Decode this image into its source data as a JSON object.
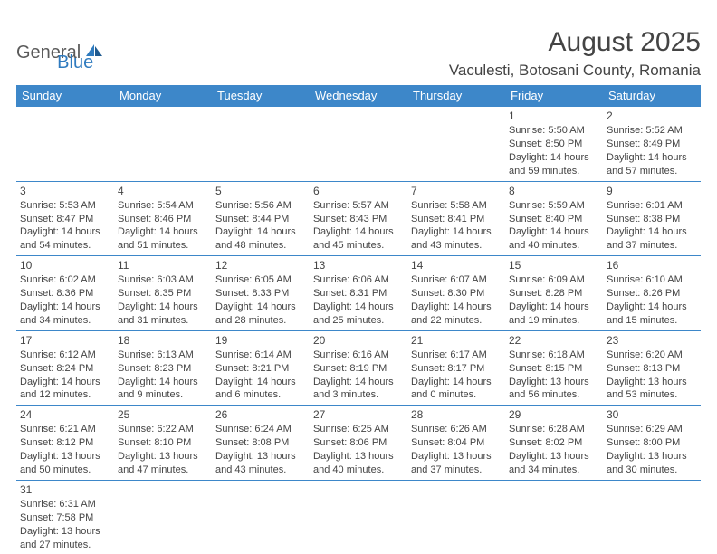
{
  "logo": {
    "text1": "General",
    "text2": "Blue"
  },
  "title": "August 2025",
  "location": "Vaculesti, Botosani County, Romania",
  "colors": {
    "header_bg": "#3d87c9",
    "header_text": "#ffffff",
    "border": "#3d87c9",
    "body_text": "#444444",
    "logo_gray": "#5a5a5a",
    "logo_blue": "#2f7bbf"
  },
  "weekdays": [
    "Sunday",
    "Monday",
    "Tuesday",
    "Wednesday",
    "Thursday",
    "Friday",
    "Saturday"
  ],
  "weeks": [
    [
      null,
      null,
      null,
      null,
      null,
      {
        "d": "1",
        "sr": "Sunrise: 5:50 AM",
        "ss": "Sunset: 8:50 PM",
        "dl1": "Daylight: 14 hours",
        "dl2": "and 59 minutes."
      },
      {
        "d": "2",
        "sr": "Sunrise: 5:52 AM",
        "ss": "Sunset: 8:49 PM",
        "dl1": "Daylight: 14 hours",
        "dl2": "and 57 minutes."
      }
    ],
    [
      {
        "d": "3",
        "sr": "Sunrise: 5:53 AM",
        "ss": "Sunset: 8:47 PM",
        "dl1": "Daylight: 14 hours",
        "dl2": "and 54 minutes."
      },
      {
        "d": "4",
        "sr": "Sunrise: 5:54 AM",
        "ss": "Sunset: 8:46 PM",
        "dl1": "Daylight: 14 hours",
        "dl2": "and 51 minutes."
      },
      {
        "d": "5",
        "sr": "Sunrise: 5:56 AM",
        "ss": "Sunset: 8:44 PM",
        "dl1": "Daylight: 14 hours",
        "dl2": "and 48 minutes."
      },
      {
        "d": "6",
        "sr": "Sunrise: 5:57 AM",
        "ss": "Sunset: 8:43 PM",
        "dl1": "Daylight: 14 hours",
        "dl2": "and 45 minutes."
      },
      {
        "d": "7",
        "sr": "Sunrise: 5:58 AM",
        "ss": "Sunset: 8:41 PM",
        "dl1": "Daylight: 14 hours",
        "dl2": "and 43 minutes."
      },
      {
        "d": "8",
        "sr": "Sunrise: 5:59 AM",
        "ss": "Sunset: 8:40 PM",
        "dl1": "Daylight: 14 hours",
        "dl2": "and 40 minutes."
      },
      {
        "d": "9",
        "sr": "Sunrise: 6:01 AM",
        "ss": "Sunset: 8:38 PM",
        "dl1": "Daylight: 14 hours",
        "dl2": "and 37 minutes."
      }
    ],
    [
      {
        "d": "10",
        "sr": "Sunrise: 6:02 AM",
        "ss": "Sunset: 8:36 PM",
        "dl1": "Daylight: 14 hours",
        "dl2": "and 34 minutes."
      },
      {
        "d": "11",
        "sr": "Sunrise: 6:03 AM",
        "ss": "Sunset: 8:35 PM",
        "dl1": "Daylight: 14 hours",
        "dl2": "and 31 minutes."
      },
      {
        "d": "12",
        "sr": "Sunrise: 6:05 AM",
        "ss": "Sunset: 8:33 PM",
        "dl1": "Daylight: 14 hours",
        "dl2": "and 28 minutes."
      },
      {
        "d": "13",
        "sr": "Sunrise: 6:06 AM",
        "ss": "Sunset: 8:31 PM",
        "dl1": "Daylight: 14 hours",
        "dl2": "and 25 minutes."
      },
      {
        "d": "14",
        "sr": "Sunrise: 6:07 AM",
        "ss": "Sunset: 8:30 PM",
        "dl1": "Daylight: 14 hours",
        "dl2": "and 22 minutes."
      },
      {
        "d": "15",
        "sr": "Sunrise: 6:09 AM",
        "ss": "Sunset: 8:28 PM",
        "dl1": "Daylight: 14 hours",
        "dl2": "and 19 minutes."
      },
      {
        "d": "16",
        "sr": "Sunrise: 6:10 AM",
        "ss": "Sunset: 8:26 PM",
        "dl1": "Daylight: 14 hours",
        "dl2": "and 15 minutes."
      }
    ],
    [
      {
        "d": "17",
        "sr": "Sunrise: 6:12 AM",
        "ss": "Sunset: 8:24 PM",
        "dl1": "Daylight: 14 hours",
        "dl2": "and 12 minutes."
      },
      {
        "d": "18",
        "sr": "Sunrise: 6:13 AM",
        "ss": "Sunset: 8:23 PM",
        "dl1": "Daylight: 14 hours",
        "dl2": "and 9 minutes."
      },
      {
        "d": "19",
        "sr": "Sunrise: 6:14 AM",
        "ss": "Sunset: 8:21 PM",
        "dl1": "Daylight: 14 hours",
        "dl2": "and 6 minutes."
      },
      {
        "d": "20",
        "sr": "Sunrise: 6:16 AM",
        "ss": "Sunset: 8:19 PM",
        "dl1": "Daylight: 14 hours",
        "dl2": "and 3 minutes."
      },
      {
        "d": "21",
        "sr": "Sunrise: 6:17 AM",
        "ss": "Sunset: 8:17 PM",
        "dl1": "Daylight: 14 hours",
        "dl2": "and 0 minutes."
      },
      {
        "d": "22",
        "sr": "Sunrise: 6:18 AM",
        "ss": "Sunset: 8:15 PM",
        "dl1": "Daylight: 13 hours",
        "dl2": "and 56 minutes."
      },
      {
        "d": "23",
        "sr": "Sunrise: 6:20 AM",
        "ss": "Sunset: 8:13 PM",
        "dl1": "Daylight: 13 hours",
        "dl2": "and 53 minutes."
      }
    ],
    [
      {
        "d": "24",
        "sr": "Sunrise: 6:21 AM",
        "ss": "Sunset: 8:12 PM",
        "dl1": "Daylight: 13 hours",
        "dl2": "and 50 minutes."
      },
      {
        "d": "25",
        "sr": "Sunrise: 6:22 AM",
        "ss": "Sunset: 8:10 PM",
        "dl1": "Daylight: 13 hours",
        "dl2": "and 47 minutes."
      },
      {
        "d": "26",
        "sr": "Sunrise: 6:24 AM",
        "ss": "Sunset: 8:08 PM",
        "dl1": "Daylight: 13 hours",
        "dl2": "and 43 minutes."
      },
      {
        "d": "27",
        "sr": "Sunrise: 6:25 AM",
        "ss": "Sunset: 8:06 PM",
        "dl1": "Daylight: 13 hours",
        "dl2": "and 40 minutes."
      },
      {
        "d": "28",
        "sr": "Sunrise: 6:26 AM",
        "ss": "Sunset: 8:04 PM",
        "dl1": "Daylight: 13 hours",
        "dl2": "and 37 minutes."
      },
      {
        "d": "29",
        "sr": "Sunrise: 6:28 AM",
        "ss": "Sunset: 8:02 PM",
        "dl1": "Daylight: 13 hours",
        "dl2": "and 34 minutes."
      },
      {
        "d": "30",
        "sr": "Sunrise: 6:29 AM",
        "ss": "Sunset: 8:00 PM",
        "dl1": "Daylight: 13 hours",
        "dl2": "and 30 minutes."
      }
    ],
    [
      {
        "d": "31",
        "sr": "Sunrise: 6:31 AM",
        "ss": "Sunset: 7:58 PM",
        "dl1": "Daylight: 13 hours",
        "dl2": "and 27 minutes."
      },
      null,
      null,
      null,
      null,
      null,
      null
    ]
  ]
}
